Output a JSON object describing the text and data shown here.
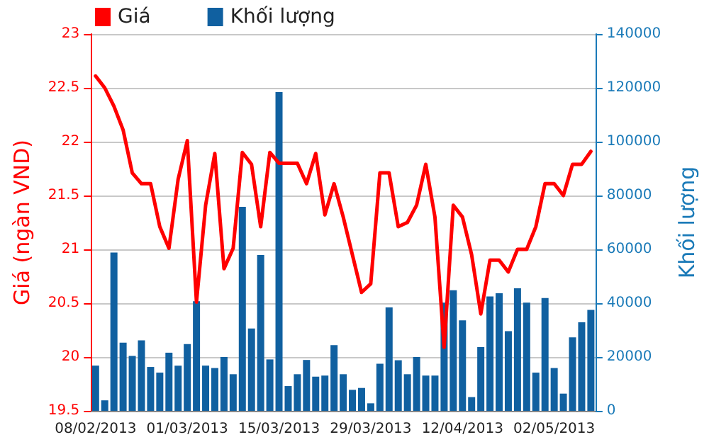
{
  "chart_data": {
    "type": "bar",
    "ylabel": "Giá (ngàn VND)",
    "y2label": "Khối lượng",
    "categories": [
      "08/02/2013",
      null,
      null,
      null,
      null,
      null,
      null,
      null,
      null,
      null,
      "01/03/2013",
      null,
      null,
      null,
      null,
      null,
      null,
      null,
      null,
      null,
      "15/03/2013",
      null,
      null,
      null,
      null,
      null,
      null,
      null,
      null,
      null,
      "29/03/2013",
      null,
      null,
      null,
      null,
      null,
      null,
      null,
      null,
      null,
      "12/04/2013",
      null,
      null,
      null,
      null,
      null,
      null,
      null,
      null,
      null,
      "02/05/2013",
      null,
      null,
      null,
      null
    ],
    "series": [
      {
        "name": "Giá",
        "type": "line",
        "color": "#ff0000",
        "values": [
          22.61,
          22.5,
          22.33,
          22.11,
          21.71,
          21.61,
          21.61,
          21.21,
          21.01,
          21.65,
          22.01,
          20.51,
          21.41,
          21.89,
          20.82,
          21.01,
          21.9,
          21.79,
          21.21,
          21.9,
          21.8,
          21.8,
          21.8,
          21.61,
          21.89,
          21.32,
          21.61,
          21.3,
          20.95,
          20.6,
          20.68,
          21.71,
          21.71,
          21.21,
          21.25,
          21.41,
          21.79,
          21.3,
          20.09,
          21.41,
          21.3,
          20.95,
          20.4,
          20.9,
          20.9,
          20.79,
          21.0,
          21.0,
          21.21,
          21.61,
          21.61,
          21.5,
          21.79,
          21.79,
          21.91
        ]
      },
      {
        "name": "Khối lượng",
        "axis": "y2",
        "color": "#1060a0",
        "values": [
          16800,
          3900,
          58800,
          25300,
          20400,
          26200,
          16300,
          14200,
          21600,
          16800,
          24800,
          40700,
          16800,
          15900,
          20000,
          13600,
          75800,
          30600,
          57900,
          19100,
          118400,
          9200,
          13600,
          18900,
          12700,
          13100,
          24400,
          13600,
          7800,
          8500,
          2800,
          17500,
          38400,
          18800,
          13600,
          20000,
          13100,
          13100,
          40200,
          44800,
          33600,
          5100,
          23700,
          42500,
          43700,
          29600,
          45500,
          40200,
          14200,
          41900,
          15900,
          6400,
          27300,
          32900,
          37500
        ]
      }
    ],
    "ylim": [
      19.5,
      23
    ],
    "yticks": [
      19.5,
      20,
      20.5,
      21,
      21.5,
      22,
      22.5,
      23
    ],
    "y2lim": [
      0,
      140000
    ],
    "y2ticks": [
      0,
      20000,
      40000,
      60000,
      80000,
      100000,
      120000,
      140000
    ],
    "grid": "y",
    "legend": "top left",
    "marker": "none",
    "line_style": "solid"
  }
}
